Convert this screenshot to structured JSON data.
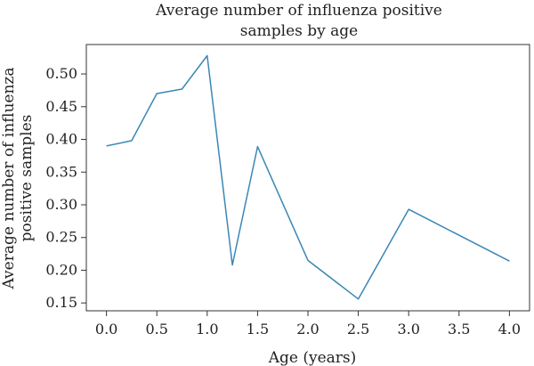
{
  "chart_data": {
    "type": "line",
    "title_lines": [
      "Average number of influenza positive",
      "samples by age"
    ],
    "xlabel": "Age (years)",
    "ylabel_lines": [
      "Average number of influenza",
      "positive samples"
    ],
    "xlim": [
      -0.2,
      4.2
    ],
    "ylim": [
      0.138,
      0.545
    ],
    "x_ticks": [
      0.0,
      0.5,
      1.0,
      1.5,
      2.0,
      2.5,
      3.0,
      3.5,
      4.0
    ],
    "x_tick_labels": [
      "0.0",
      "0.5",
      "1.0",
      "1.5",
      "2.0",
      "2.5",
      "3.0",
      "3.5",
      "4.0"
    ],
    "y_ticks": [
      0.15,
      0.2,
      0.25,
      0.3,
      0.35,
      0.4,
      0.45,
      0.5
    ],
    "y_tick_labels": [
      "0.15",
      "0.20",
      "0.25",
      "0.30",
      "0.35",
      "0.40",
      "0.45",
      "0.50"
    ],
    "grid": false,
    "legend": "none",
    "series": [
      {
        "color": "#3a87b5",
        "x": [
          0.0,
          0.25,
          0.5,
          0.75,
          1.0,
          1.25,
          1.5,
          2.0,
          2.5,
          3.0,
          4.0
        ],
        "y": [
          0.39,
          0.398,
          0.47,
          0.477,
          0.528,
          0.208,
          0.389,
          0.215,
          0.156,
          0.293,
          0.214
        ]
      }
    ]
  }
}
